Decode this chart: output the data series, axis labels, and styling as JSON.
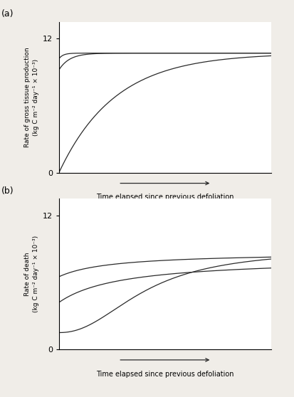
{
  "fig_width": 4.14,
  "fig_height": 5.58,
  "dpi": 100,
  "background_color": "#f0ede8",
  "axes_color": "#ffffff",
  "line_color": "#2a2a2a",
  "panel_a_label": "(a)",
  "panel_b_label": "(b)",
  "ylabel_a": "Rate of gross tissue production\n(kg C m⁻² day⁻¹ × 10⁻³)",
  "ylabel_b": "Rate of death\n(kg C m⁻² day⁻¹ × 10⁻³)",
  "xlabel": "Time elapsed since previous defoliation",
  "ytick_max": 12,
  "ylim": [
    0,
    13.5
  ],
  "xlim": [
    0,
    10
  ]
}
